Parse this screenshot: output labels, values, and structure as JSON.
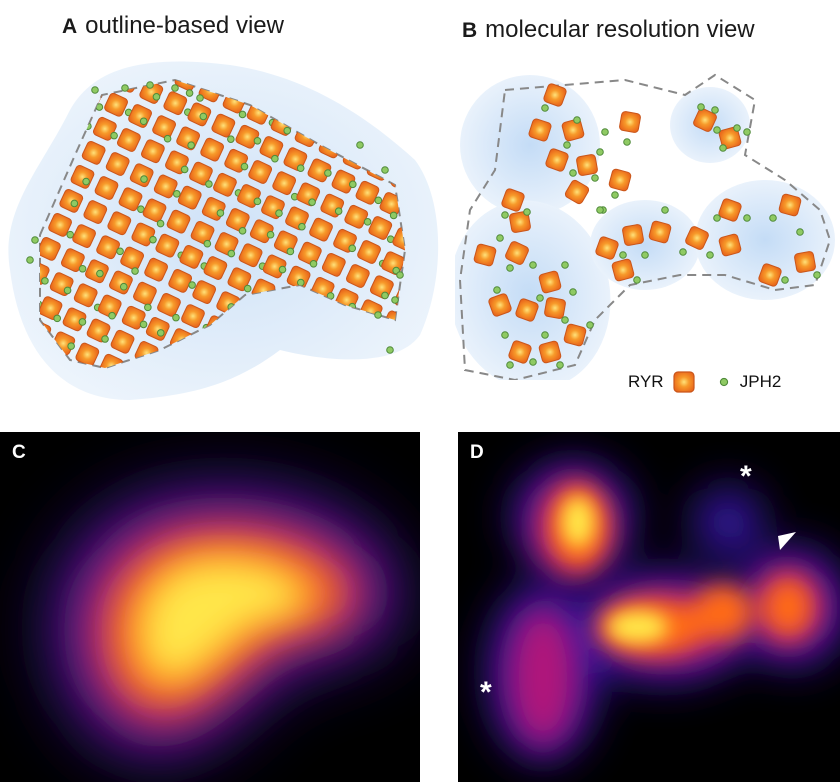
{
  "panel_a": {
    "letter": "A",
    "title": "outline-based view"
  },
  "panel_b": {
    "letter": "B",
    "title": "molecular resolution view"
  },
  "panel_c": {
    "letter": "C"
  },
  "panel_d": {
    "letter": "D",
    "annotation_star": "*"
  },
  "legend": {
    "ryr_label": "RYR",
    "jph2_label": "JPH2"
  },
  "colors": {
    "ryr_fill": "#f07a1e",
    "ryr_edge": "#c9561b",
    "ryr_core": "#ffd86a",
    "jph2_fill": "#8fca63",
    "jph2_edge": "#4f8a3a",
    "halo": "#d7e7f8",
    "outline": "#888888",
    "image_background": "#000000"
  },
  "icons": {
    "ryr": "orange-rounded-square-icon",
    "jph2": "green-dot-icon",
    "arrowhead": "arrowhead-icon"
  }
}
